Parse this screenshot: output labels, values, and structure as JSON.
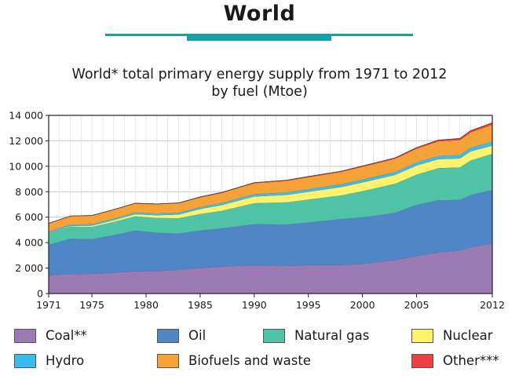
{
  "header": {
    "title": "World"
  },
  "chart_data": {
    "type": "area",
    "stacked": true,
    "title": "World* total primary energy supply from 1971 to 2012",
    "subtitle": "by fuel (Mtoe)",
    "xlabel": "",
    "ylabel": "",
    "xlim": [
      1971,
      2012
    ],
    "ylim": [
      0,
      14000
    ],
    "x_ticks": [
      1971,
      1975,
      1980,
      1985,
      1990,
      1995,
      2000,
      2005,
      2012
    ],
    "y_ticks": [
      0,
      2000,
      4000,
      6000,
      8000,
      10000,
      12000,
      14000
    ],
    "y_tick_labels": [
      "0",
      "2 000",
      "4 000",
      "6 000",
      "8 000",
      "10 000",
      "12 000",
      "14 000"
    ],
    "grid": true,
    "legend_position": "bottom",
    "x": [
      1971,
      1973,
      1975,
      1977,
      1979,
      1981,
      1983,
      1985,
      1987,
      1990,
      1993,
      1995,
      1998,
      2000,
      2003,
      2005,
      2007,
      2009,
      2010,
      2012
    ],
    "series": [
      {
        "name": "Coal**",
        "color": "#9c7bb5",
        "values": [
          1450,
          1530,
          1560,
          1660,
          1760,
          1790,
          1870,
          2030,
          2130,
          2240,
          2180,
          2250,
          2260,
          2330,
          2650,
          2950,
          3250,
          3380,
          3650,
          3950
        ]
      },
      {
        "name": "Oil",
        "color": "#4f86c6",
        "values": [
          2400,
          2800,
          2720,
          2940,
          3200,
          3000,
          2860,
          2940,
          3010,
          3230,
          3260,
          3350,
          3600,
          3670,
          3710,
          4020,
          4100,
          4000,
          4110,
          4200
        ]
      },
      {
        "name": "Natural gas",
        "color": "#4fc3a6",
        "values": [
          900,
          950,
          970,
          1050,
          1130,
          1170,
          1210,
          1290,
          1380,
          1650,
          1750,
          1800,
          1870,
          2070,
          2280,
          2380,
          2520,
          2550,
          2720,
          2850
        ]
      },
      {
        "name": "Nuclear",
        "color": "#fff36e",
        "values": [
          30,
          55,
          95,
          130,
          160,
          210,
          280,
          390,
          450,
          520,
          570,
          610,
          650,
          670,
          690,
          720,
          710,
          700,
          710,
          640
        ]
      },
      {
        "name": "Hydro",
        "color": "#3cbcea",
        "values": [
          105,
          110,
          120,
          125,
          135,
          140,
          150,
          160,
          165,
          185,
          200,
          210,
          220,
          225,
          230,
          250,
          265,
          275,
          295,
          320
        ]
      },
      {
        "name": "Biofuels and waste",
        "color": "#f5a239",
        "values": [
          620,
          640,
          660,
          680,
          700,
          720,
          740,
          760,
          790,
          860,
          910,
          940,
          970,
          1010,
          1040,
          1080,
          1130,
          1180,
          1200,
          1320
        ]
      },
      {
        "name": "Other***",
        "color": "#ee4040",
        "values": [
          7,
          8,
          9,
          10,
          11,
          12,
          15,
          20,
          23,
          30,
          33,
          36,
          40,
          45,
          55,
          65,
          80,
          100,
          115,
          140
        ]
      }
    ]
  },
  "legend": {
    "items": [
      {
        "label": "Coal**",
        "color": "#9c7bb5"
      },
      {
        "label": "Oil",
        "color": "#4f86c6"
      },
      {
        "label": "Natural gas",
        "color": "#4fc3a6"
      },
      {
        "label": "Nuclear",
        "color": "#fff36e"
      },
      {
        "label": "Hydro",
        "color": "#3cbcea"
      },
      {
        "label": "Biofuels and waste",
        "color": "#f5a239"
      },
      {
        "label": "Other***",
        "color": "#ee4040"
      }
    ]
  }
}
